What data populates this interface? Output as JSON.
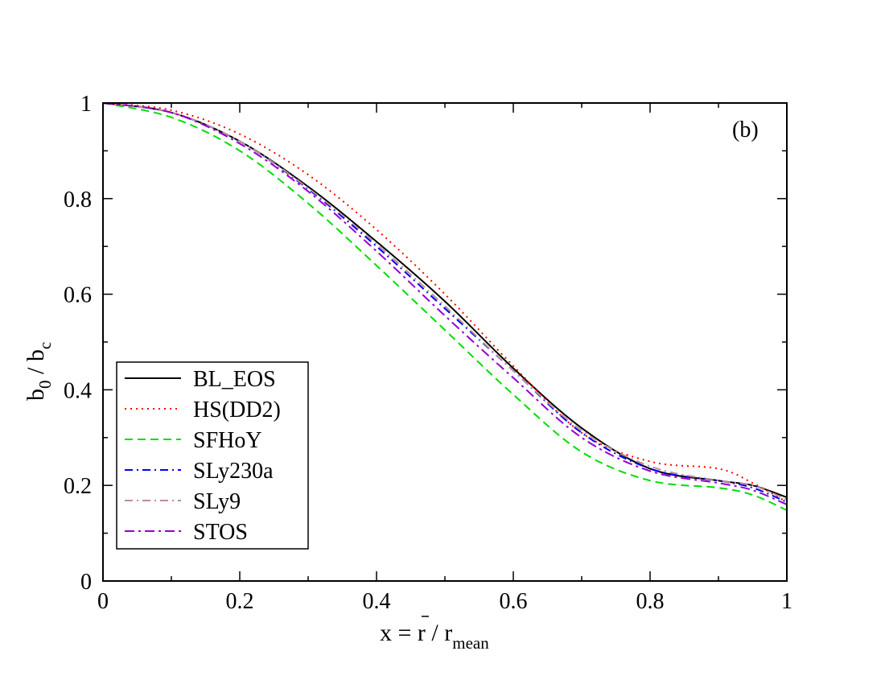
{
  "chart_data": {
    "type": "line",
    "panel_label": "(b)",
    "xlabel": {
      "pre": "x = ",
      "bar_var": "r",
      "mid": " / r",
      "sub": "mean"
    },
    "ylabel": {
      "pre": "b",
      "sub1": "0",
      "mid": " / b",
      "sub2": "c"
    },
    "xlim": [
      0,
      1
    ],
    "ylim": [
      0,
      1
    ],
    "x_ticks": [
      0,
      0.2,
      0.4,
      0.6,
      0.8,
      1
    ],
    "x_tick_labels": [
      "0",
      "0.2",
      "0.4",
      "0.6",
      "0.8",
      "1"
    ],
    "y_ticks": [
      0,
      0.2,
      0.4,
      0.6,
      0.8,
      1
    ],
    "y_tick_labels": [
      "0",
      "0.2",
      "0.4",
      "0.6",
      "0.8",
      "1"
    ],
    "legend_position": "bottom-left",
    "x": [
      0,
      0.1,
      0.2,
      0.3,
      0.4,
      0.5,
      0.6,
      0.7,
      0.8,
      0.9,
      0.95,
      1.0
    ],
    "series": [
      {
        "name": "BL_EOS",
        "color": "#000000",
        "dash": "",
        "values": [
          1.0,
          0.98,
          0.92,
          0.825,
          0.71,
          0.585,
          0.445,
          0.32,
          0.235,
          0.21,
          0.2,
          0.175
        ]
      },
      {
        "name": "HS(DD2)",
        "color": "#ff0000",
        "dash": "2,5",
        "values": [
          1.0,
          0.985,
          0.935,
          0.85,
          0.735,
          0.6,
          0.45,
          0.31,
          0.25,
          0.235,
          0.205,
          0.165
        ]
      },
      {
        "name": "SFHoY",
        "color": "#00dd00",
        "dash": "10,6",
        "values": [
          1.0,
          0.97,
          0.9,
          0.79,
          0.66,
          0.525,
          0.39,
          0.27,
          0.21,
          0.195,
          0.18,
          0.148
        ]
      },
      {
        "name": "SLy230a",
        "color": "#0000ff",
        "dash": "10,5,2,5",
        "values": [
          1.0,
          0.98,
          0.92,
          0.82,
          0.7,
          0.57,
          0.44,
          0.31,
          0.235,
          0.21,
          0.195,
          0.165
        ]
      },
      {
        "name": "SLy9",
        "color": "#bc8f8f",
        "dash": "10,5,2,5",
        "values": [
          1.0,
          0.98,
          0.92,
          0.822,
          0.705,
          0.575,
          0.44,
          0.315,
          0.24,
          0.21,
          0.2,
          0.17
        ]
      },
      {
        "name": "STOS",
        "color": "#9400d3",
        "dash": "12,5,3,5",
        "values": [
          1.0,
          0.98,
          0.915,
          0.815,
          0.69,
          0.555,
          0.425,
          0.3,
          0.23,
          0.205,
          0.19,
          0.16
        ]
      }
    ]
  }
}
